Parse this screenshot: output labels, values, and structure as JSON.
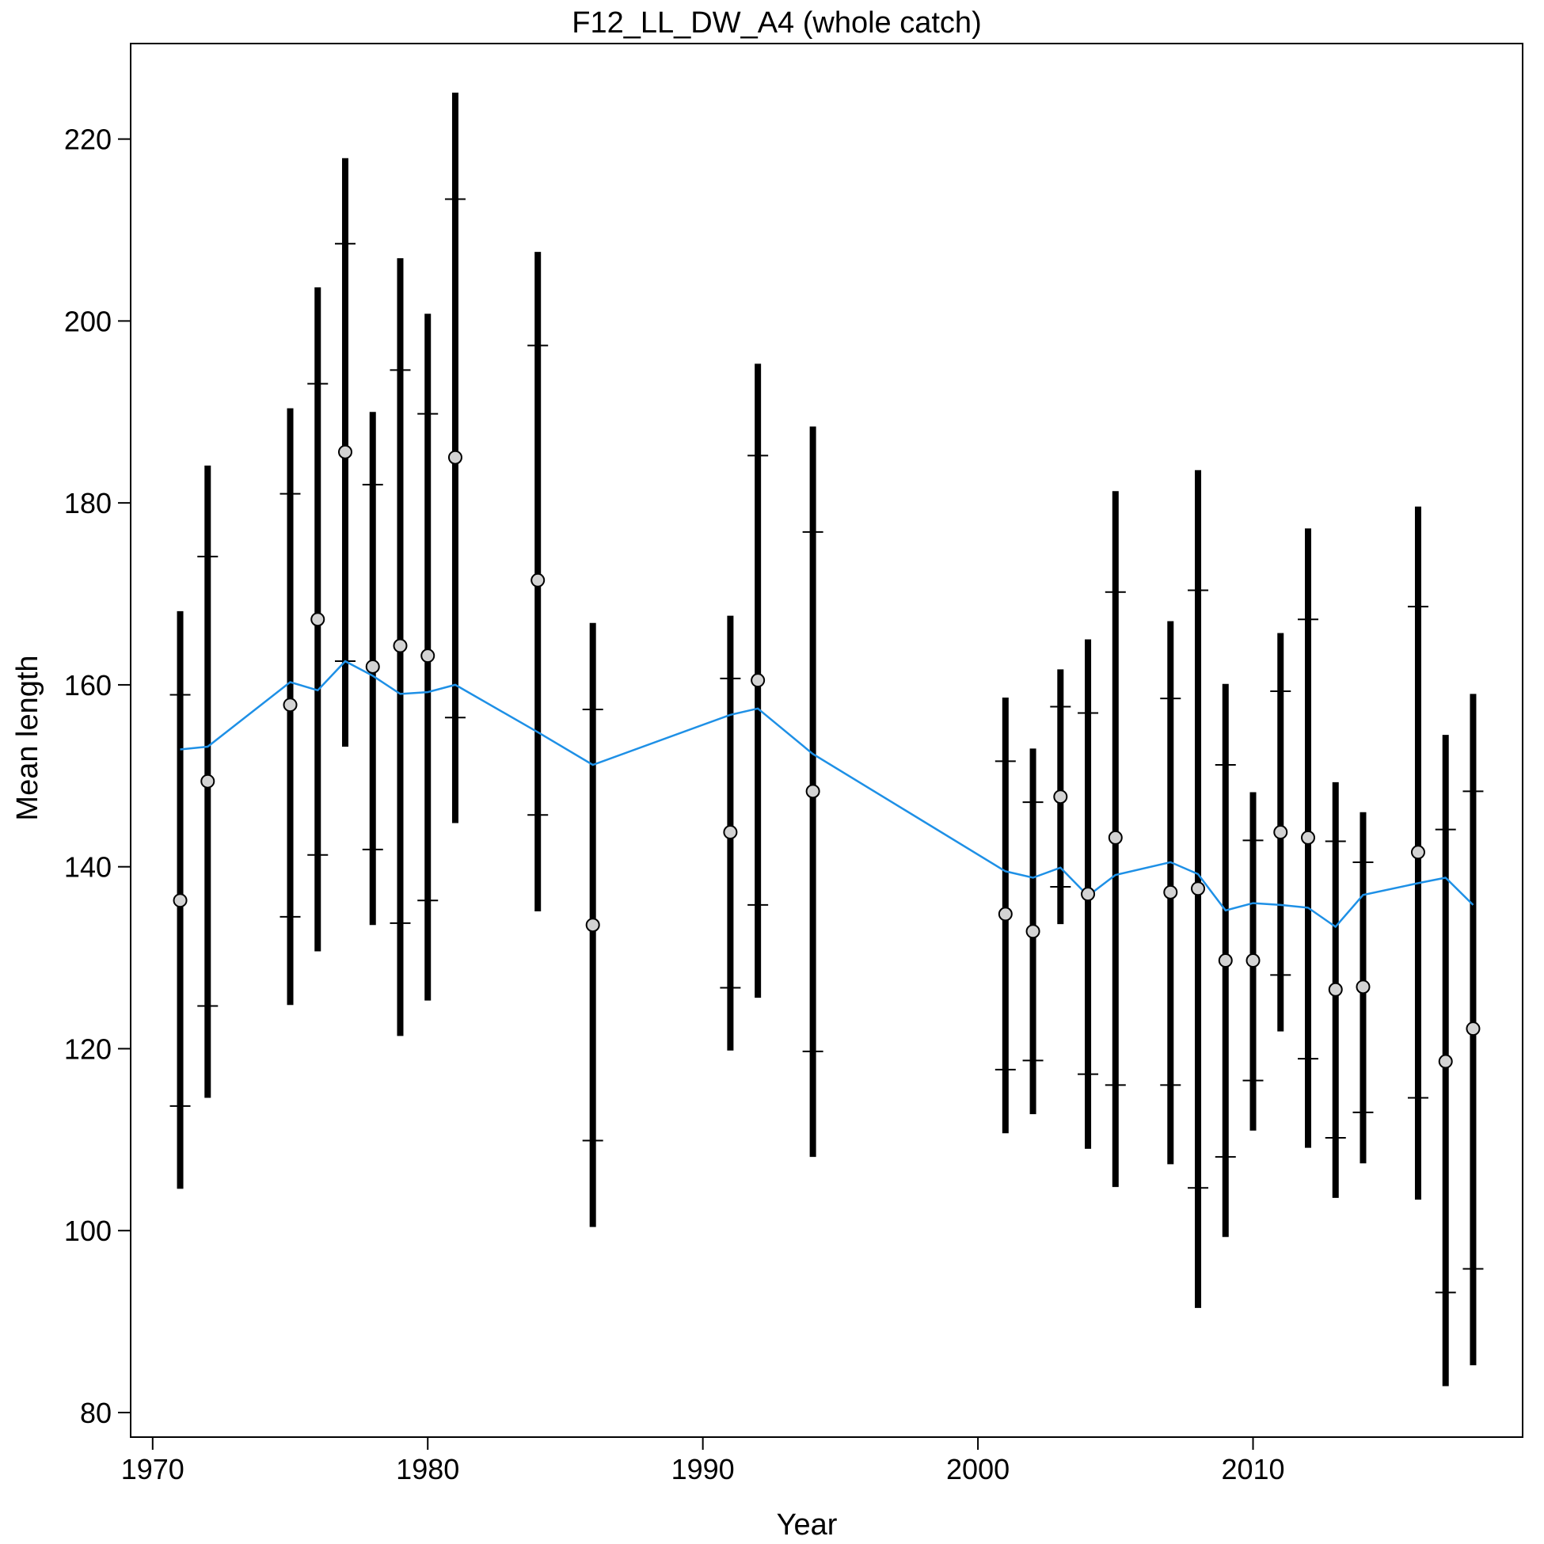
{
  "chart_data": {
    "type": "scatter",
    "title": "F12_LL_DW_A4 (whole catch)",
    "xlabel": "Year",
    "ylabel": "Mean length",
    "xlim": [
      1969.2,
      2019.8
    ],
    "ylim": [
      77.3,
      230.5
    ],
    "xticks": [
      1970,
      1980,
      1990,
      2000,
      2010
    ],
    "yticks": [
      80,
      100,
      120,
      140,
      160,
      180,
      200,
      220
    ],
    "grid": false,
    "legend": "none",
    "colors": {
      "observed_fill": "#d3d3d3",
      "observed_stroke": "#000000",
      "expected_line": "#1e90e6",
      "error_bars": "#000000"
    },
    "series": [
      {
        "x": [
          1971,
          1972,
          1975,
          1976,
          1977,
          1978,
          1979,
          1980,
          1981,
          1984,
          1986,
          1991,
          1992,
          1994,
          2001,
          2002,
          2003,
          2004,
          2005,
          2007,
          2008,
          2009,
          2010,
          2011,
          2012,
          2013,
          2014,
          2016,
          2017,
          2018
        ],
        "observed": [
          136.3,
          149.4,
          157.8,
          167.2,
          185.6,
          162.0,
          164.3,
          163.2,
          185.0,
          171.5,
          133.6,
          143.8,
          160.5,
          148.3,
          134.8,
          132.9,
          147.7,
          137.0,
          143.2,
          137.2,
          137.6,
          129.7,
          129.7,
          143.8,
          143.2,
          126.5,
          126.8,
          141.6,
          118.6,
          122.2
        ],
        "expected": [
          152.9,
          153.2,
          160.3,
          159.4,
          162.6,
          161.0,
          159.0,
          159.2,
          160.0,
          154.8,
          151.2,
          156.7,
          157.4,
          152.4,
          139.5,
          138.8,
          139.9,
          136.8,
          139.1,
          140.5,
          139.2,
          135.2,
          136.0,
          135.8,
          135.5,
          133.4,
          136.9,
          138.2,
          138.8,
          135.8
        ],
        "lower_95": [
          104.6,
          114.6,
          124.8,
          130.7,
          153.2,
          133.6,
          121.4,
          125.3,
          144.8,
          135.1,
          100.4,
          119.8,
          125.6,
          108.1,
          110.7,
          112.8,
          133.7,
          109.0,
          104.8,
          107.3,
          91.5,
          99.3,
          111.0,
          121.9,
          109.1,
          103.6,
          107.4,
          103.4,
          82.9,
          85.2
        ],
        "upper_95": [
          168.1,
          184.1,
          190.4,
          203.7,
          217.9,
          190.0,
          206.9,
          200.8,
          225.1,
          207.6,
          166.8,
          167.6,
          195.3,
          188.4,
          158.6,
          153.0,
          161.7,
          165.0,
          181.3,
          167.0,
          183.6,
          160.1,
          148.2,
          165.7,
          177.2,
          149.3,
          146.0,
          179.6,
          154.5,
          159.0
        ],
        "lower_inner": [
          113.7,
          124.7,
          134.5,
          141.3,
          162.6,
          141.9,
          133.8,
          136.3,
          156.4,
          145.7,
          109.9,
          126.7,
          135.8,
          119.7,
          117.7,
          118.7,
          137.8,
          117.2,
          116.0,
          116.0,
          104.7,
          108.1,
          116.5,
          128.1,
          118.9,
          110.2,
          113.0,
          114.6,
          93.2,
          95.8
        ],
        "upper_inner": [
          158.9,
          174.1,
          181.0,
          193.1,
          208.5,
          182.0,
          194.6,
          189.8,
          213.4,
          197.3,
          157.3,
          160.7,
          185.2,
          176.8,
          151.6,
          147.1,
          157.6,
          156.9,
          170.2,
          158.5,
          170.4,
          151.2,
          142.9,
          159.3,
          167.2,
          142.8,
          140.5,
          168.6,
          144.1,
          148.3
        ]
      }
    ]
  }
}
